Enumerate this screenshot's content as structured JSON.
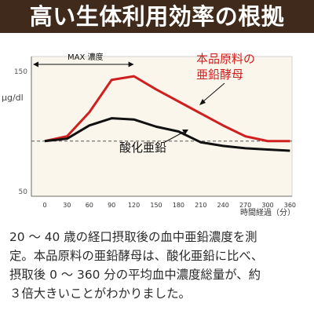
{
  "header": {
    "title": "高い生体利用効率の根拠"
  },
  "chart_data": {
    "type": "line",
    "xlabel": "時間経過（分）",
    "ylabel": "μg/dl",
    "x": [
      0,
      30,
      60,
      90,
      120,
      150,
      180,
      210,
      240,
      270,
      300,
      360
    ],
    "x_ticks": [
      "0",
      "30",
      "60",
      "90",
      "120",
      "150",
      "180",
      "210",
      "240",
      "270",
      "300",
      "360"
    ],
    "y_ticks": [
      150,
      50
    ],
    "ylim": [
      50,
      160
    ],
    "baseline": 92,
    "series": [
      {
        "name": "本品原料の亜鉛酵母",
        "color": "#d01f1f",
        "values": [
          92,
          96,
          116,
          143,
          146,
          135,
          125,
          115,
          105,
          96,
          92,
          92
        ]
      },
      {
        "name": "酸化亜鉛",
        "color": "#111111",
        "values": [
          92,
          94,
          105,
          111,
          110,
          104,
          100,
          91,
          88,
          86,
          85,
          84
        ]
      }
    ],
    "annotations": {
      "max_label": "MAX 濃度",
      "red_label_line1": "本品原料の",
      "red_label_line2": "亜鉛酵母",
      "black_label": "酸化亜鉛"
    },
    "grid": false,
    "legend": "none"
  },
  "caption": {
    "line1": "20 ～ 40 歳の経口摂取後の血中亜鉛濃度を測",
    "line2": "定。本品原料の亜鉛酵母は、酸化亜鉛に比べ、",
    "line3": "摂取後 0 ～ 360 分の平均血中濃度総量が、約",
    "line4": "３倍大きいことがわかりました。"
  }
}
